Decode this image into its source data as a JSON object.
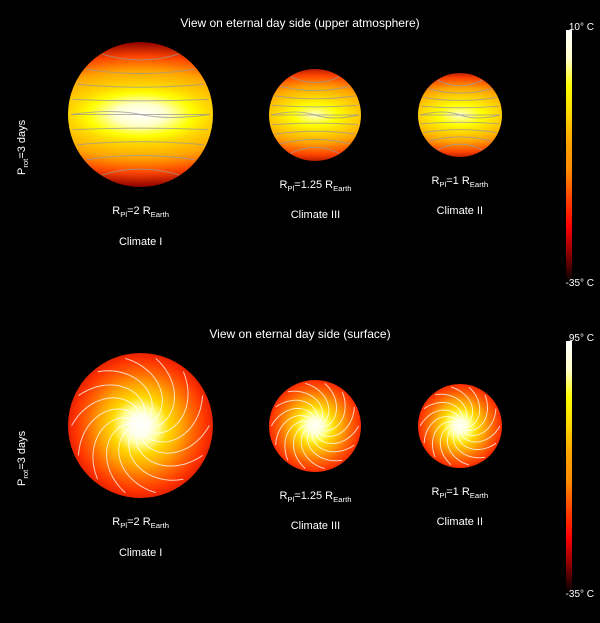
{
  "panels": [
    {
      "title": "View on eternal day side (upper atmosphere)",
      "ylabel": "P_rot=3 days",
      "colorbar": {
        "max_label": "10° C",
        "min_label": "-35° C",
        "gradient": [
          "#000000",
          "#8b0000",
          "#ff0000",
          "#ff4500",
          "#ff8c00",
          "#ffa500",
          "#ffd700",
          "#ffff00",
          "#ffffcc",
          "#ffffff"
        ]
      },
      "pattern": "jet",
      "spheres": [
        {
          "diameter": 145,
          "r_label": "R_Pl=2 R_Earth",
          "climate": "Climate I",
          "gradient": "radial-gradient(ellipse 120% 50% at 50% 50%, #ffffff 0%, #ffffcc 15%, #ffff00 30%, #ffd700 40%, #ffa500 60%, #ff4500 80%, #8b0000 100%)"
        },
        {
          "diameter": 92,
          "r_label": "R_Pl=1.25 R_Earth",
          "climate": "Climate III",
          "gradient": "radial-gradient(ellipse 120% 55% at 50% 50%, #ffffcc 0%, #ffff00 20%, #ffd700 35%, #ffa500 55%, #ff4500 78%, #8b0000 100%)"
        },
        {
          "diameter": 84,
          "r_label": "R_Pl=1 R_Earth",
          "climate": "Climate II",
          "gradient": "radial-gradient(ellipse 120% 55% at 50% 50%, #ffffcc 0%, #ffff00 22%, #ffd700 38%, #ffa500 58%, #ff4500 80%, #8b0000 100%)"
        }
      ]
    },
    {
      "title": "View on eternal day side (surface)",
      "ylabel": "P_rot=3 days",
      "colorbar": {
        "max_label": "95° C",
        "min_label": "-35° C",
        "gradient": [
          "#000000",
          "#8b0000",
          "#ff0000",
          "#ff4500",
          "#ff8c00",
          "#ffa500",
          "#ffd700",
          "#ffff00",
          "#ffffcc",
          "#ffffff"
        ]
      },
      "pattern": "radial",
      "spheres": [
        {
          "diameter": 145,
          "r_label": "R_Pl=2 R_Earth",
          "climate": "Climate I",
          "gradient": "radial-gradient(circle at 50% 50%, #ffffff 0%, #ffffee 10%, #ffff99 18%, #ffd700 28%, #ffa500 40%, #ff6600 52%, #ff3300 64%, #cc1100 78%, #8b0000 92%, #660000 100%)"
        },
        {
          "diameter": 92,
          "r_label": "R_Pl=1.25 R_Earth",
          "climate": "Climate III",
          "gradient": "radial-gradient(circle at 50% 50%, #ffffff 0%, #ffffcc 12%, #ffff66 20%, #ffd700 30%, #ffa500 42%, #ff6600 55%, #ff3300 68%, #cc1100 82%, #8b0000 100%)"
        },
        {
          "diameter": 84,
          "r_label": "R_Pl=1 R_Earth",
          "climate": "Climate II",
          "gradient": "radial-gradient(circle at 50% 50%, #ffffff 0%, #ffffcc 12%, #ffff66 20%, #ffd700 30%, #ffa500 42%, #ff6600 55%, #ff3300 68%, #cc1100 82%, #8b0000 100%)"
        }
      ]
    }
  ],
  "stream_colors": {
    "jet": "#9a9a9a",
    "radial": "#ffffff"
  },
  "background": "#000000",
  "text_color": "#ffffff"
}
